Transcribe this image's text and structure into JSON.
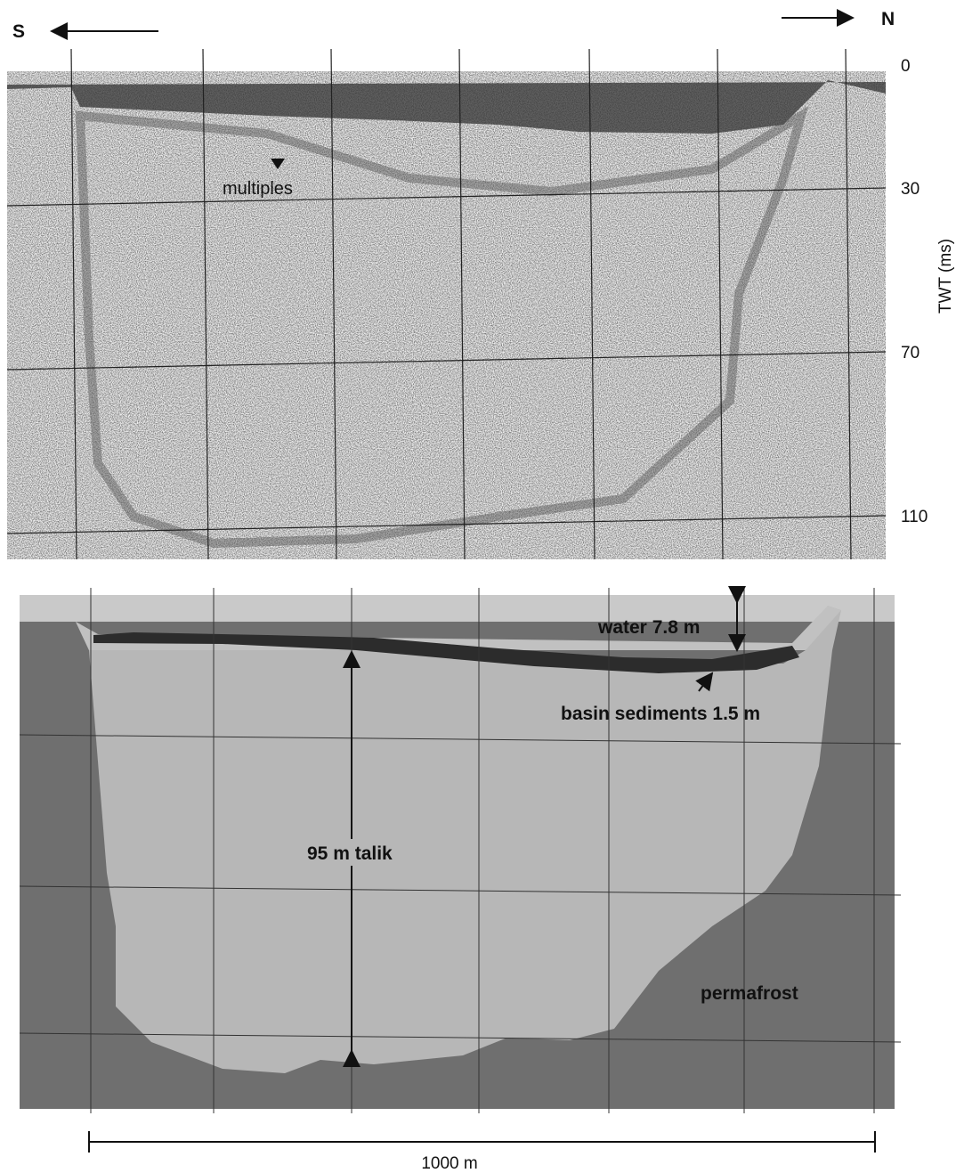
{
  "directions": {
    "south": "S",
    "north": "N"
  },
  "seismic": {
    "axis_label": "TWT (ms)",
    "ticks": [
      0,
      30,
      70,
      110
    ],
    "annotation": "multiples"
  },
  "interpretation": {
    "water": "water 7.8 m",
    "sediments": "basin sediments 1.5 m",
    "talik": "95 m talik",
    "permafrost": "permafrost"
  },
  "scale_bar": "1000 m"
}
